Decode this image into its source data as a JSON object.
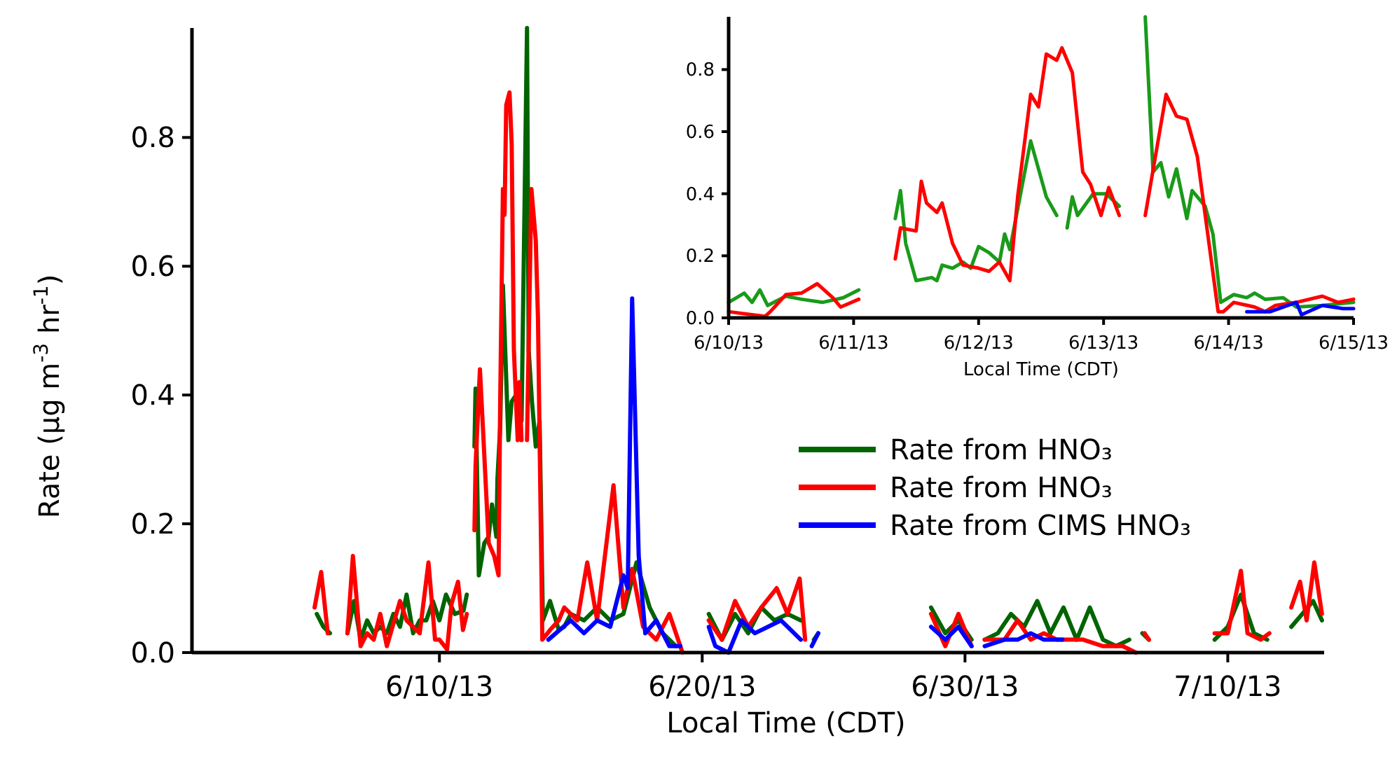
{
  "chart_data": [
    {
      "type": "line",
      "xlabel": "Local Time (CDT)",
      "ylabel": "Rate (μg m$^{-3}$ hr$^{-1}$)",
      "xlim": [
        "--05-31T14:00",
        "--07-13T16:00"
      ],
      "ylim": [
        0,
        0.97
      ],
      "xticks": [
        {
          "value": "--06-10",
          "label": "6/10/13"
        },
        {
          "value": "--06-20",
          "label": "6/20/13"
        },
        {
          "value": "--06-30",
          "label": "6/30/13"
        },
        {
          "value": "--07-10",
          "label": "7/10/13"
        }
      ],
      "yticks": [
        {
          "value": 0,
          "label": "0.0"
        },
        0.2,
        0.4,
        0.6,
        0.8
      ],
      "legend": "right",
      "series": [
        {
          "name": "Rate from HNO₃",
          "color": "#006400",
          "x": [
            "--06-05T08:00",
            "--06-05T14:00",
            "--06-05T20:00",
            "--06-06T06:00",
            "--06-06T12:00",
            "--06-06T18:00",
            "--06-07T00:00",
            "--06-07T06:00",
            "--06-07T12:00",
            "--06-07T18:00",
            "--06-08T00:00",
            "--06-08T06:00",
            "--06-08T12:00",
            "--06-08T18:00",
            "--06-09T00:00",
            "--06-09T06:00",
            "--06-09T12:00",
            "--06-09T18:00",
            "--06-10T00:00",
            "--06-10T06:00",
            "--06-10T14:00",
            "--06-10T22:00",
            "--06-11T01:00",
            "--06-11T04:00",
            "--06-11T08:00",
            "--06-11T09:00",
            "--06-11T12:00",
            "--06-11T17:00",
            "--06-11T21:00",
            "--06-12T00:00",
            "--06-12T04:00",
            "--06-12T05:00",
            "--06-12T07:30",
            "--06-12T10:00",
            "--06-12T15:00",
            "--06-12T18:00",
            "--06-12T22:00",
            "--06-13T03:00",
            "--06-13T08:00",
            "--06-13T09:30",
            "--06-13T12:30",
            "--06-13T16:00",
            "--06-13T19:30",
            "--06-13T22:30",
            "--06-14T05:00",
            "--06-14T13:00",
            "--06-14T18:00",
            "--06-15T00:00",
            "--06-15T12:00",
            "--06-16T00:00",
            "--06-16T12:00",
            "--06-17T00:00",
            "--06-17T12:00",
            "--06-18T00:00",
            "--06-18T12:00",
            "--06-19T00:00",
            "--06-19T12:00",
            "--06-20T06:00",
            "--06-20T18:00",
            "--06-21T06:00",
            "--06-21T18:00",
            "--06-22T06:00",
            "--06-22T18:00",
            "--06-23T06:00",
            "--06-23T18:00",
            "--06-24T00:00",
            "--06-24T06:00",
            "--06-24T10:00",
            "--06-26T00:00",
            "--06-28T17:00",
            "--06-29T06:00",
            "--06-29T18:00",
            "--06-30T06:00",
            "--06-30T12:00",
            "--06-30T18:00",
            "--07-01T06:00",
            "--07-01T18:00",
            "--07-02T06:00",
            "--07-02T18:00",
            "--07-03T06:00",
            "--07-03T18:00",
            "--07-04T06:00",
            "--07-04T18:00",
            "--07-05T06:00",
            "--07-05T18:00",
            "--07-06T06:00",
            "--07-06T12:00",
            "--07-06T18:00",
            "--07-07T00:00",
            "--07-08T00:00",
            "--07-09T12:00",
            "--07-10T00:00",
            "--07-10T12:00",
            "--07-11T00:00",
            "--07-11T12:00",
            "--07-12T00:00",
            "--07-12T10:00",
            "--07-12T20:00",
            "--07-13T06:00",
            "--07-13T14:00"
          ],
          "values": [
            0.06,
            0.04,
            0.03,
            null,
            0.03,
            0.08,
            0.02,
            0.05,
            0.03,
            0.04,
            0.03,
            0.06,
            0.04,
            0.09,
            0.03,
            0.05,
            0.05,
            0.08,
            0.05,
            0.09,
            0.06,
            0.065,
            0.09,
            null,
            0.32,
            0.41,
            0.12,
            0.17,
            0.18,
            0.23,
            0.18,
            0.27,
            0.35,
            0.57,
            0.33,
            0.39,
            0.4,
            0.36,
            0.97,
            0.47,
            0.39,
            0.32,
            0.36,
            0.05,
            0.08,
            0.035,
            0.04,
            0.06,
            0.05,
            0.07,
            0.05,
            0.06,
            0.14,
            0.07,
            0.03,
            0.01,
            null,
            0.06,
            0.02,
            0.06,
            0.03,
            0.07,
            0.05,
            0.06,
            0.05,
            null,
            0.02,
            0.03,
            null,
            0.07,
            0.03,
            0.05,
            0.02,
            null,
            0.02,
            0.03,
            0.06,
            0.04,
            0.08,
            0.03,
            0.07,
            0.02,
            0.07,
            0.02,
            0.01,
            0.02,
            null,
            0.03,
            0.02,
            null,
            0.02,
            0.04,
            0.09,
            0.03,
            0.02,
            null,
            0.04,
            0.06,
            0.08,
            0.05
          ]
        },
        {
          "name": "Rate from HNO₃",
          "color": "#ff0000",
          "x": [
            "--06-05T06:00",
            "--06-05T12:00",
            "--06-05T18:00",
            "--06-06T06:00",
            "--06-06T12:00",
            "--06-06T17:00",
            "--06-07T00:00",
            "--06-07T06:00",
            "--06-07T12:00",
            "--06-07T18:00",
            "--06-08T00:00",
            "--06-08T12:00",
            "--06-08T18:00",
            "--06-09T06:00",
            "--06-09T14:00",
            "--06-09T20:00",
            "--06-10T00:00",
            "--06-10T07:00",
            "--06-10T11:00",
            "--06-10T17:00",
            "--06-10T21:30",
            "--06-11T01:00",
            "--06-11T04:00",
            "--06-11T08:00",
            "--06-11T09:00",
            "--06-11T13:00",
            "--06-11T16:00",
            "--06-11T21:00",
            "--06-12T02:00",
            "--06-12T06:00",
            "--06-12T07:30",
            "--06-12T10:00",
            "--06-12T11:30",
            "--06-12T13:00",
            "--06-12T16:00",
            "--06-12T18:00",
            "--06-12T20:00",
            "--06-12T23:30",
            "--06-13T01:00",
            "--06-13T03:00",
            "--06-13T05:30",
            "--06-13T08:00",
            "--06-13T12:00",
            "--06-13T16:00",
            "--06-13T18:00",
            "--06-13T22:00",
            "--06-14T05:00",
            "--06-14T13:00",
            "--06-14T18:00",
            "--06-15T06:00",
            "--06-15T15:00",
            "--06-16T00:00",
            "--06-16T15:00",
            "--06-17T00:00",
            "--06-17T08:00",
            "--06-17T18:00",
            "--06-18T06:00",
            "--06-18T18:00",
            "--06-19T06:00",
            "--06-19T12:00",
            "--06-20T06:00",
            "--06-20T18:00",
            "--06-21T06:00",
            "--06-21T18:00",
            "--06-22T06:00",
            "--06-22T20:00",
            "--06-23T06:00",
            "--06-23T17:00",
            "--06-23T22:00",
            "--06-24T06:00",
            "--06-28T17:00",
            "--06-29T06:00",
            "--06-29T18:00",
            "--06-30T06:00",
            "--06-30T12:00",
            "--06-30T18:00",
            "--07-01T12:00",
            "--07-02T00:00",
            "--07-02T12:00",
            "--07-03T00:00",
            "--07-03T12:00",
            "--07-04T12:00",
            "--07-05T06:00",
            "--07-06T00:00",
            "--07-06T12:00",
            "--07-06T16:00",
            "--07-06T20:00",
            "--07-07T00:00",
            "--07-08T00:00",
            "--07-09T12:00",
            "--07-10T00:00",
            "--07-10T12:00",
            "--07-10T18:00",
            "--07-11T06:00",
            "--07-11T14:00",
            "--07-12T00:00",
            "--07-12T10:00",
            "--07-12T18:00",
            "--07-13T00:00",
            "--07-13T07:00",
            "--07-13T14:00"
          ],
          "values": [
            0.07,
            0.125,
            0.03,
            null,
            0.03,
            0.15,
            0.01,
            0.03,
            0.02,
            0.06,
            0.01,
            0.08,
            0.05,
            0.03,
            0.14,
            0.02,
            0.02,
            0.005,
            0.075,
            0.11,
            0.035,
            0.06,
            null,
            0.19,
            0.29,
            0.44,
            0.34,
            0.17,
            0.15,
            0.12,
            0.39,
            0.72,
            0.68,
            0.85,
            0.87,
            0.79,
            0.47,
            0.33,
            0.42,
            0.33,
            null,
            0.33,
            0.72,
            0.64,
            0.52,
            0.02,
            0.035,
            0.05,
            0.07,
            0.05,
            0.14,
            0.05,
            0.26,
            0.07,
            0.13,
            0.04,
            0.02,
            0.06,
            0.0,
            null,
            0.05,
            0.02,
            0.08,
            0.04,
            0.07,
            0.1,
            0.06,
            0.115,
            0.02,
            null,
            0.06,
            0.01,
            0.06,
            0.01,
            null,
            0.02,
            0.02,
            0.05,
            0.02,
            0.03,
            0.02,
            0.02,
            0.01,
            0.01,
            0.0,
            null,
            0.03,
            0.02,
            null,
            0.03,
            0.03,
            0.127,
            0.03,
            0.02,
            0.03,
            null,
            0.07,
            0.11,
            0.05,
            0.14,
            0.06
          ]
        },
        {
          "name": "Rate from CIMS HNO₃",
          "color": "#0000ff",
          "x": [
            "--06-14T03:30",
            "--06-15T00:00",
            "--06-15T12:00",
            "--06-16T00:00",
            "--06-16T12:00",
            "--06-17T00:00",
            "--06-17T04:00",
            "--06-17T08:00",
            "--06-17T14:00",
            "--06-17T20:00",
            "--06-18T06:00",
            "--06-18T18:00",
            "--06-19T04:00",
            "--06-19T12:00",
            "--06-20T06:00",
            "--06-20T12:00",
            "--06-21T00:00",
            "--06-21T12:00",
            "--06-22T00:00",
            "--06-22T12:00",
            "--06-23T00:00",
            "--06-23T12:00",
            "--06-23T18:00",
            "--06-24T00:00",
            "--06-24T04:00",
            "--06-24T10:00",
            "--06-26T00:00",
            "--06-28T17:00",
            "--06-29T06:00",
            "--06-29T18:00",
            "--06-30T06:00",
            "--06-30T12:00",
            "--06-30T18:00",
            "--07-01T12:00",
            "--07-02T00:00",
            "--07-02T12:00",
            "--07-03T00:00",
            "--07-03T17:00"
          ],
          "values": [
            0.02,
            0.05,
            0.03,
            0.05,
            0.04,
            0.12,
            0.1,
            0.55,
            0.15,
            0.03,
            0.05,
            0.01,
            0.01,
            null,
            0.04,
            0.01,
            0.0,
            0.05,
            0.03,
            0.04,
            0.05,
            0.03,
            0.02,
            null,
            0.01,
            0.03,
            null,
            0.04,
            0.02,
            0.04,
            0.01,
            null,
            0.01,
            0.02,
            0.02,
            0.03,
            0.02,
            0.02
          ]
        }
      ]
    },
    {
      "type": "line",
      "xlabel": "Local Time (CDT)",
      "xlim": [
        "--06-10",
        "--06-15"
      ],
      "ylim": [
        0,
        0.97
      ],
      "xticks": [
        {
          "value": "--06-10",
          "label": "6/10/13"
        },
        {
          "value": "--06-11",
          "label": "6/11/13"
        },
        {
          "value": "--06-12",
          "label": "6/12/13"
        },
        {
          "value": "--06-13",
          "label": "6/13/13"
        },
        {
          "value": "--06-14",
          "label": "6/14/13"
        },
        {
          "value": "--06-15",
          "label": "6/15/13"
        }
      ],
      "yticks": [
        {
          "value": 0,
          "label": "0.0"
        },
        0.2,
        0.4,
        0.6,
        0.8
      ],
      "series": [
        {
          "color": "#1a9a1a",
          "x": [
            "--06-10T00:00",
            "--06-10T03:00",
            "--06-10T04:30",
            "--06-10T06:00",
            "--06-10T07:30",
            "--06-10T11:00",
            "--06-10T14:00",
            "--06-10T18:00",
            "--06-10T22:00",
            "--06-11T01:00",
            "--06-11T04:00",
            "--06-11T08:00",
            "--06-11T09:00",
            "--06-11T10:00",
            "--06-11T12:00",
            "--06-11T15:00",
            "--06-11T16:00",
            "--06-11T17:00",
            "--06-11T19:00",
            "--06-11T21:00",
            "--06-11T22:30",
            "--06-12T00:00",
            "--06-12T02:00",
            "--06-12T04:00",
            "--06-12T05:00",
            "--06-12T06:00",
            "--06-12T07:30",
            "--06-12T10:00",
            "--06-12T13:00",
            "--06-12T15:00",
            "--06-12T16:00",
            "--06-12T17:00",
            "--06-12T18:00",
            "--06-12T19:00",
            "--06-12T22:00",
            "--06-13T00:30",
            "--06-13T03:00",
            "--06-13T05:30",
            "--06-13T08:00",
            "--06-13T09:30",
            "--06-13T11:00",
            "--06-13T12:30",
            "--06-13T14:00",
            "--06-13T16:00",
            "--06-13T17:00",
            "--06-13T19:30",
            "--06-13T21:00",
            "--06-13T22:30",
            "--06-14T01:00",
            "--06-14T03:30",
            "--06-14T05:00",
            "--06-14T07:00",
            "--06-14T10:30",
            "--06-14T13:00",
            "--06-14T18:00",
            "--06-15T00:00"
          ],
          "values": [
            0.05,
            0.08,
            0.05,
            0.09,
            0.04,
            0.07,
            0.06,
            0.05,
            0.065,
            0.09,
            null,
            0.32,
            0.41,
            0.24,
            0.12,
            0.13,
            0.12,
            0.17,
            0.16,
            0.18,
            0.16,
            0.23,
            0.21,
            0.18,
            0.27,
            0.22,
            0.35,
            0.57,
            0.39,
            0.33,
            null,
            0.29,
            0.39,
            0.33,
            0.4,
            0.4,
            0.36,
            null,
            0.97,
            0.47,
            0.5,
            0.39,
            0.48,
            0.32,
            0.41,
            0.36,
            0.27,
            0.05,
            0.075,
            0.065,
            0.08,
            0.06,
            0.065,
            0.035,
            0.04,
            0.05
          ]
        },
        {
          "color": "#ff0000",
          "x": [
            "--06-10T00:00",
            "--06-10T04:30",
            "--06-10T07:00",
            "--06-10T08:00",
            "--06-10T11:00",
            "--06-10T14:00",
            "--06-10T17:00",
            "--06-10T20:00",
            "--06-10T21:30",
            "--06-11T01:00",
            "--06-11T04:00",
            "--06-11T08:00",
            "--06-11T09:00",
            "--06-11T12:00",
            "--06-11T13:00",
            "--06-11T14:00",
            "--06-11T16:00",
            "--06-11T17:00",
            "--06-11T19:00",
            "--06-11T21:00",
            "--06-12T00:00",
            "--06-12T02:00",
            "--06-12T04:00",
            "--06-12T06:00",
            "--06-12T07:30",
            "--06-12T10:00",
            "--06-12T11:30",
            "--06-12T13:00",
            "--06-12T15:00",
            "--06-12T16:00",
            "--06-12T18:00",
            "--06-12T20:00",
            "--06-12T21:30",
            "--06-12T23:30",
            "--06-13T01:00",
            "--06-13T03:00",
            "--06-13T05:30",
            "--06-13T08:00",
            "--06-13T12:00",
            "--06-13T14:00",
            "--06-13T16:00",
            "--06-13T18:00",
            "--06-13T22:00",
            "--06-13T23:00",
            "--06-14T01:00",
            "--06-14T05:00",
            "--06-14T07:00",
            "--06-14T09:00",
            "--06-14T13:00",
            "--06-14T18:00",
            "--06-14T21:00",
            "--06-15T00:00"
          ],
          "values": [
            0.02,
            0.01,
            0.005,
            0.02,
            0.075,
            0.08,
            0.11,
            0.065,
            0.035,
            0.06,
            null,
            0.19,
            0.29,
            0.28,
            0.44,
            0.37,
            0.34,
            0.37,
            0.24,
            0.17,
            0.16,
            0.15,
            0.18,
            0.12,
            0.39,
            0.72,
            0.68,
            0.85,
            0.83,
            0.87,
            0.79,
            0.47,
            0.43,
            0.33,
            0.42,
            0.33,
            null,
            0.33,
            0.72,
            0.65,
            0.64,
            0.52,
            0.02,
            0.02,
            0.05,
            0.035,
            0.02,
            0.04,
            0.05,
            0.07,
            0.05,
            0.06
          ]
        },
        {
          "color": "#0000ff",
          "x": [
            "--06-14T03:30",
            "--06-14T08:00",
            "--06-14T13:00",
            "--06-14T14:00",
            "--06-14T18:00",
            "--06-14T22:00",
            "--06-15T00:00"
          ],
          "values": [
            0.02,
            0.02,
            0.05,
            0.01,
            0.04,
            0.03,
            0.03
          ]
        }
      ]
    }
  ]
}
